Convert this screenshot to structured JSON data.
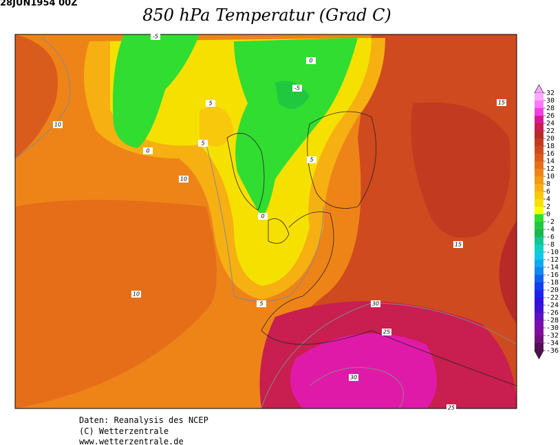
{
  "header": {
    "date": "28JUN1954 00Z",
    "title": "850 hPa Temperatur (Grad C)"
  },
  "contour_labels": [
    -5,
    0,
    -5,
    5,
    15,
    10,
    5,
    0,
    5,
    10,
    0,
    15,
    10,
    5,
    30,
    25,
    30,
    25
  ],
  "colorbar": {
    "ticks": [
      32,
      30,
      28,
      26,
      24,
      22,
      20,
      18,
      16,
      14,
      12,
      10,
      8,
      6,
      4,
      2,
      0,
      -2,
      -4,
      -6,
      -8,
      -10,
      -12,
      -14,
      -16,
      -18,
      -20,
      -22,
      -24,
      -26,
      -28,
      -30,
      -32,
      -34,
      -36
    ],
    "colors": [
      "#ffa8ff",
      "#ff78ff",
      "#f040e0",
      "#d81896",
      "#c81e50",
      "#b82a28",
      "#c23a20",
      "#cf4a1e",
      "#da5c1c",
      "#e66e18",
      "#ee8418",
      "#f29a14",
      "#f6b012",
      "#f8c80c",
      "#f6e000",
      "#ffff00",
      "#30dd30",
      "#20c840",
      "#18b850",
      "#10c890",
      "#10d0c0",
      "#10c8e8",
      "#10a8f0",
      "#1088f0",
      "#1060f0",
      "#1040f0",
      "#2020f0",
      "#3010e0",
      "#4010d0",
      "#6010c0",
      "#7810b0",
      "#801098",
      "#701080",
      "#501050"
    ]
  },
  "footer": [
    "Daten: Reanalysis des NCEP",
    "(C) Wetterzentrale",
    "www.wetterzentrale.de"
  ]
}
